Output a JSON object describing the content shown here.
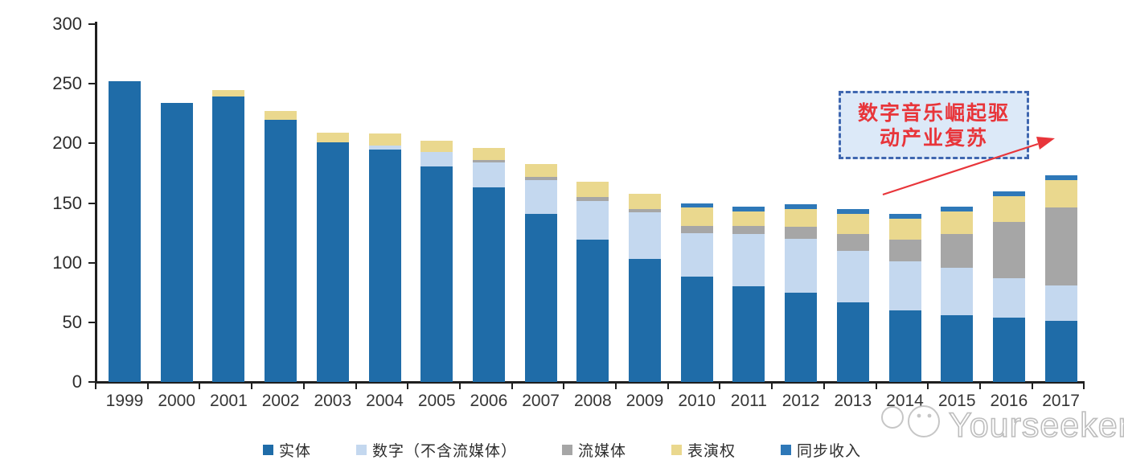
{
  "chart_data": {
    "type": "bar",
    "stacked": true,
    "title": "",
    "xlabel": "",
    "ylabel": "",
    "x": [
      "1999",
      "2000",
      "2001",
      "2002",
      "2003",
      "2004",
      "2005",
      "2006",
      "2007",
      "2008",
      "2009",
      "2010",
      "2011",
      "2012",
      "2013",
      "2014",
      "2015",
      "2016",
      "2017"
    ],
    "series": [
      {
        "name": "实体",
        "color": "#1f6ca8",
        "values": [
          252,
          234,
          239,
          220,
          201,
          195,
          181,
          163,
          141,
          119,
          103,
          88,
          80,
          75,
          67,
          60,
          56,
          54,
          51
        ]
      },
      {
        "name": "数字（不含流媒体）",
        "color": "#c4d8ef",
        "values": [
          0,
          0,
          0,
          0,
          0,
          3,
          12,
          21,
          28,
          33,
          39,
          37,
          44,
          45,
          43,
          41,
          40,
          33,
          30
        ]
      },
      {
        "name": "流媒体",
        "color": "#a6a6a6",
        "values": [
          0,
          0,
          0,
          0,
          0,
          0,
          0,
          2,
          3,
          3,
          3,
          6,
          7,
          10,
          14,
          18,
          28,
          47,
          65
        ]
      },
      {
        "name": "表演权",
        "color": "#ead88e",
        "values": [
          0,
          0,
          6,
          7,
          8,
          10,
          9,
          10,
          11,
          13,
          13,
          15,
          12,
          15,
          17,
          18,
          19,
          22,
          23
        ]
      },
      {
        "name": "同步收入",
        "color": "#2e78b8",
        "values": [
          0,
          0,
          0,
          0,
          0,
          0,
          0,
          0,
          0,
          0,
          0,
          4,
          4,
          4,
          4,
          4,
          4,
          4,
          4
        ]
      }
    ],
    "ylim": [
      0,
      300
    ],
    "yticks": [
      0,
      50,
      100,
      150,
      200,
      250,
      300
    ],
    "grid": false,
    "legend_position": "bottom",
    "annotation": {
      "text": "数字音乐崛起驱动产业复苏",
      "line1": "数字音乐崛起驱",
      "line2": "动产业复苏"
    }
  },
  "watermark": {
    "text": "Yourseeker"
  },
  "colors": {
    "axis": "#1f1f1f",
    "tick_label": "#2d2d2d",
    "annotation_text": "#e8353a",
    "annotation_fill": "#dce9f8",
    "annotation_border": "#3f67b0",
    "arrow": "#e8353a",
    "watermark": "#bdbdbd"
  }
}
